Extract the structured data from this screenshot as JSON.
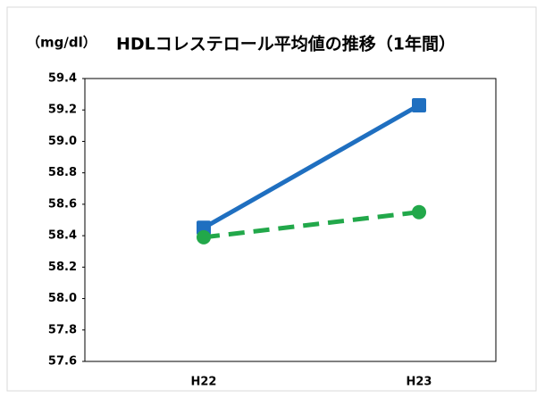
{
  "chart_data": {
    "type": "line",
    "title": "HDLコレステロール平均値の推移（1年間）",
    "y_label": "（mg/dl）",
    "categories": [
      "H22",
      "H23"
    ],
    "series": [
      {
        "color": "#1f6fc0",
        "line_style": "solid",
        "marker": "square",
        "values": [
          58.45,
          59.23
        ]
      },
      {
        "color": "#22a84a",
        "line_style": "dashed",
        "marker": "circle",
        "values": [
          58.39,
          58.55
        ]
      }
    ],
    "ylim": [
      57.6,
      59.4
    ],
    "yticks": [
      57.6,
      57.8,
      {
        "value": 58,
        "label": "58.0"
      },
      58.2,
      58.4,
      58.6,
      58.8,
      {
        "value": 59,
        "label": "59.0"
      },
      59.2,
      59.4
    ],
    "grid": false
  }
}
